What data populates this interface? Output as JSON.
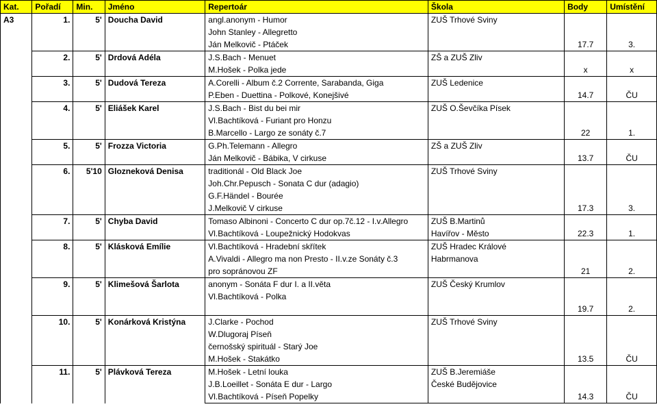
{
  "headers": {
    "kat": "Kat.",
    "poradi": "Pořadí",
    "min": "Min.",
    "jmeno": "Jméno",
    "repertoar": "Repertoár",
    "skola": "Škola",
    "body": "Body",
    "umisteni": "Umístění"
  },
  "kat_label": "A3",
  "rows": [
    {
      "poradi": "1.",
      "min": "5'",
      "jmeno": "Doucha David",
      "lines": [
        {
          "rep": "angl.anonym - Humor",
          "skola": "ZUŠ Trhové Sviny",
          "body": "",
          "umisteni": ""
        },
        {
          "rep": "John Stanley - Allegretto",
          "skola": "",
          "body": "",
          "umisteni": ""
        },
        {
          "rep": "Ján Melkovič - Ptáček",
          "skola": "",
          "body": "17.7",
          "umisteni": "3."
        }
      ]
    },
    {
      "poradi": "2.",
      "min": "5'",
      "jmeno": "Drdová Adéla",
      "lines": [
        {
          "rep": "J.S.Bach - Menuet",
          "skola": "ZŠ a ZUŠ Zliv",
          "body": "",
          "umisteni": ""
        },
        {
          "rep": "M.Hošek - Polka jede",
          "skola": "",
          "body": "x",
          "umisteni": "x"
        }
      ]
    },
    {
      "poradi": "3.",
      "min": "5'",
      "jmeno": "Dudová Tereza",
      "lines": [
        {
          "rep": "A.Corelli - Album č.2 Corrente, Sarabanda, Giga",
          "skola": "ZUŠ Ledenice",
          "body": "",
          "umisteni": ""
        },
        {
          "rep": "P.Eben - Duettina - Polkové, Konejšivé",
          "skola": "",
          "body": "14.7",
          "umisteni": "ČU"
        }
      ]
    },
    {
      "poradi": "4.",
      "min": "5'",
      "jmeno": "Eliášek Karel",
      "lines": [
        {
          "rep": "J.S.Bach - Bist du bei mir",
          "skola": "ZUŠ O.Ševčíka Písek",
          "body": "",
          "umisteni": ""
        },
        {
          "rep": "Vl.Bachtíková - Furiant pro Honzu",
          "skola": "",
          "body": "",
          "umisteni": ""
        },
        {
          "rep": "B.Marcello - Largo ze sonáty č.7",
          "skola": "",
          "body": "22",
          "umisteni": "1."
        }
      ]
    },
    {
      "poradi": "5.",
      "min": "5'",
      "jmeno": "Frozza Victoria",
      "lines": [
        {
          "rep": "G.Ph.Telemann - Allegro",
          "skola": "ZŠ a ZUŠ Zliv",
          "body": "",
          "umisteni": ""
        },
        {
          "rep": "Ján Melkovič - Bábika, V cirkuse",
          "skola": "",
          "body": "13.7",
          "umisteni": "ČU"
        }
      ]
    },
    {
      "poradi": "6.",
      "min": "5'10",
      "jmeno": "Glozneková Denisa",
      "lines": [
        {
          "rep": "traditionál - Old Black Joe",
          "skola": "ZUŠ Trhové Sviny",
          "body": "",
          "umisteni": ""
        },
        {
          "rep": "Joh.Chr.Pepusch - Sonata C dur (adagio)",
          "skola": "",
          "body": "",
          "umisteni": ""
        },
        {
          "rep": "G.F.Händel - Bourée",
          "skola": "",
          "body": "",
          "umisteni": ""
        },
        {
          "rep": "J.Melkovič  V cirkuse",
          "skola": "",
          "body": "17.3",
          "umisteni": "3."
        }
      ]
    },
    {
      "poradi": "7.",
      "min": "5'",
      "jmeno": "Chyba David",
      "lines": [
        {
          "rep": "Tomaso Albinoni - Concerto C dur op.7č.12 - I.v.Allegro",
          "skola": "ZUŠ B.Martinů",
          "body": "",
          "umisteni": ""
        },
        {
          "rep": "Vl.Bachtíková - Loupežnický Hodokvas",
          "skola": "Havířov - Město",
          "body": "22.3",
          "umisteni": "1."
        }
      ]
    },
    {
      "poradi": "8.",
      "min": "5'",
      "jmeno": "Klásková Emílie",
      "lines": [
        {
          "rep": "Vl.Bachtíková - Hradební skřítek",
          "skola": "ZUŠ Hradec Králové",
          "body": "",
          "umisteni": ""
        },
        {
          "rep": "A.Vivaldi - Allegro ma non Presto - II.v.ze Sonáty č.3",
          "skola": "Habrmanova",
          "body": "",
          "umisteni": ""
        },
        {
          "rep": "pro sopránovou ZF",
          "skola": "",
          "body": "21",
          "umisteni": "2."
        }
      ]
    },
    {
      "poradi": "9.",
      "min": "5'",
      "jmeno": "Klimešová Šarlota",
      "lines": [
        {
          "rep": "anonym - Sonáta F dur I. a II.věta",
          "skola": "ZUŠ Český Krumlov",
          "body": "",
          "umisteni": ""
        },
        {
          "rep": "Vl.Bachtíková - Polka",
          "skola": "",
          "body": "",
          "umisteni": ""
        },
        {
          "rep": "",
          "skola": "",
          "body": "19.7",
          "umisteni": "2."
        }
      ]
    },
    {
      "poradi": "10.",
      "min": "5'",
      "jmeno": "Konárková Kristýna",
      "lines": [
        {
          "rep": "J.Clarke - Pochod",
          "skola": "ZUŠ Trhové Sviny",
          "body": "",
          "umisteni": ""
        },
        {
          "rep": "W.Dlugoraj Píseň",
          "skola": "",
          "body": "",
          "umisteni": ""
        },
        {
          "rep": "černošský spirituál - Starý Joe",
          "skola": "",
          "body": "",
          "umisteni": ""
        },
        {
          "rep": "M.Hošek - Stakátko",
          "skola": "",
          "body": "13.5",
          "umisteni": "ČU"
        }
      ]
    },
    {
      "poradi": "11.",
      "min": "5'",
      "jmeno": "Plávková Tereza",
      "lines": [
        {
          "rep": "M.Hošek - Letní louka",
          "skola": "ZUŠ B.Jeremiáše",
          "body": "",
          "umisteni": ""
        },
        {
          "rep": "J.B.Loeillet - Sonáta E dur - Largo",
          "skola": "České Budějovice",
          "body": "",
          "umisteni": ""
        },
        {
          "rep": "Vl.Bachtíková - Píseň Popelky",
          "skola": "",
          "body": "14.3",
          "umisteni": "ČU"
        }
      ]
    }
  ]
}
